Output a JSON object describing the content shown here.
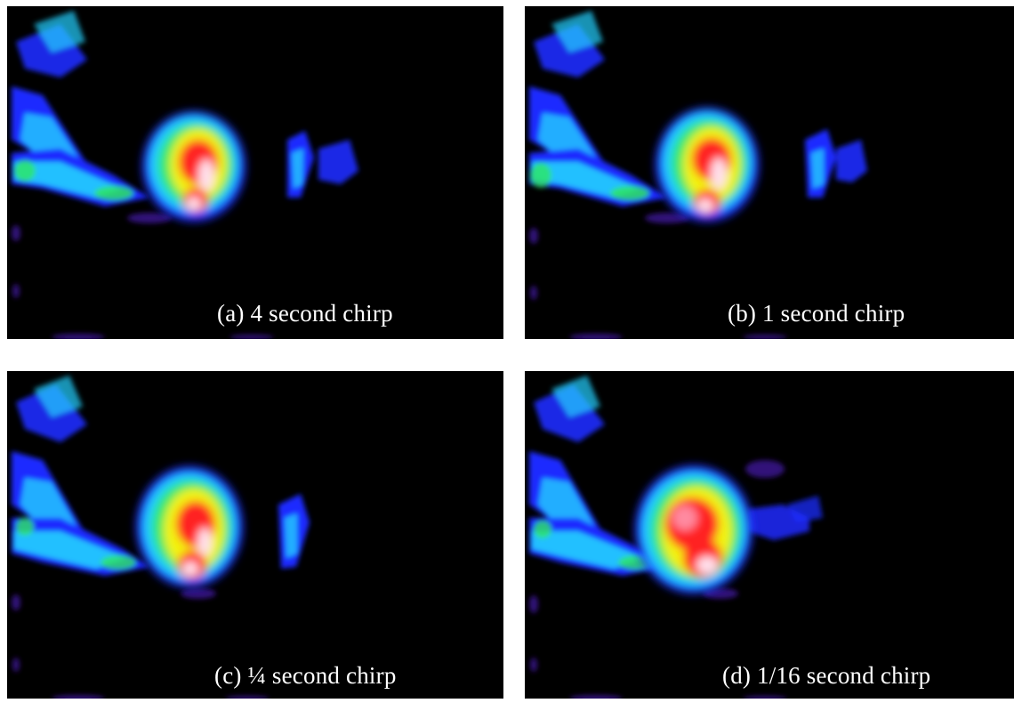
{
  "panels": [
    {
      "id": "a",
      "caption": "(a) 4 second chirp"
    },
    {
      "id": "b",
      "caption": "(b) 1 second chirp"
    },
    {
      "id": "c",
      "caption": "(c) ¼ second chirp"
    },
    {
      "id": "d",
      "caption": "(d) 1/16 second chirp"
    }
  ],
  "colors": {
    "background": "#000000",
    "low": "#2a0f8a",
    "blue": "#1c2cff",
    "cyan": "#22d0ff",
    "green": "#2ee860",
    "yellow": "#f3f30a",
    "red": "#ff2020",
    "peak": "#ffe0ec"
  }
}
